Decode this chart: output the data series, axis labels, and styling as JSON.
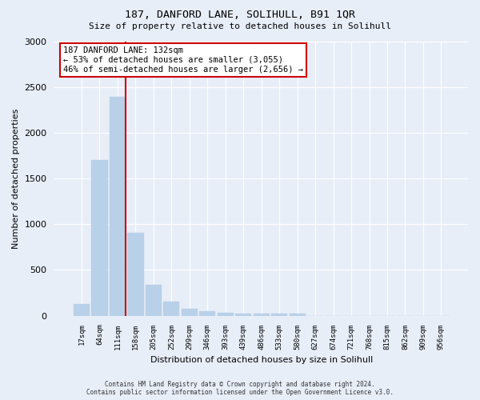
{
  "title": "187, DANFORD LANE, SOLIHULL, B91 1QR",
  "subtitle": "Size of property relative to detached houses in Solihull",
  "xlabel": "Distribution of detached houses by size in Solihull",
  "ylabel": "Number of detached properties",
  "bar_color": "#b8d0e8",
  "bar_edge_color": "#b8d0e8",
  "background_color": "#e8eef8",
  "plot_bg_color": "#e8eef8",
  "grid_color": "#ffffff",
  "categories": [
    "17sqm",
    "64sqm",
    "111sqm",
    "158sqm",
    "205sqm",
    "252sqm",
    "299sqm",
    "346sqm",
    "393sqm",
    "439sqm",
    "486sqm",
    "533sqm",
    "580sqm",
    "627sqm",
    "674sqm",
    "721sqm",
    "768sqm",
    "815sqm",
    "862sqm",
    "909sqm",
    "956sqm"
  ],
  "values": [
    130,
    1700,
    2390,
    910,
    340,
    155,
    75,
    50,
    35,
    25,
    20,
    20,
    20,
    0,
    0,
    0,
    0,
    0,
    0,
    0,
    0
  ],
  "ylim": [
    0,
    3000
  ],
  "yticks": [
    0,
    500,
    1000,
    1500,
    2000,
    2500,
    3000
  ],
  "property_label": "187 DANFORD LANE: 132sqm",
  "annotation_line1": "← 53% of detached houses are smaller (3,055)",
  "annotation_line2": "46% of semi-detached houses are larger (2,656) →",
  "red_line_bar_index": 2,
  "annotation_box_color": "#ffffff",
  "annotation_box_edge": "#cc0000",
  "red_line_color": "#cc0000",
  "footer_line1": "Contains HM Land Registry data © Crown copyright and database right 2024.",
  "footer_line2": "Contains public sector information licensed under the Open Government Licence v3.0."
}
